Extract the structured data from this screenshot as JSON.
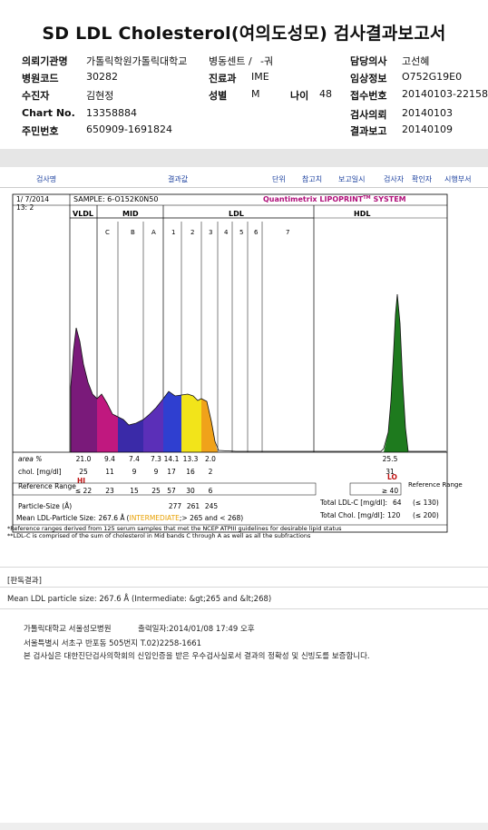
{
  "report": {
    "title": "SD LDL Cholesterol(여의도성모) 검사결과보고서",
    "fields_left": [
      {
        "label": "의뢰기관명",
        "value": "가톨릭학원가톨릭대학교"
      },
      {
        "label": "병원코드",
        "value": "30282"
      },
      {
        "label": "수진자",
        "value": "김현정"
      },
      {
        "label": "Chart No.",
        "value": "13358884"
      },
      {
        "label": "주민번호",
        "value": "650909-1691824"
      }
    ],
    "ward": {
      "label": "병동센트 /",
      "value": "-궈"
    },
    "dept": {
      "label": "진료과",
      "value": "IME"
    },
    "sex": {
      "label": "성별",
      "value": "M"
    },
    "age": {
      "label": "나이",
      "value": "48"
    },
    "fields_right": [
      {
        "label": "담당의사",
        "value": "고선혜"
      },
      {
        "label": "임상정보",
        "value": "O752G19E0"
      },
      {
        "label": "접수번호",
        "value": "20140103-22158"
      },
      {
        "label": "검사의뢰",
        "value": "20140103"
      },
      {
        "label": "결과보고",
        "value": "20140109"
      }
    ]
  },
  "table_header": {
    "test": "검사명",
    "result": "결과값",
    "unit": "단위",
    "ref": "참고치",
    "date": "보고일시",
    "tester": "검사자",
    "checker": "확인자",
    "dept": "시행부서"
  },
  "lipoprint": {
    "date": "1/ 7/2014",
    "run": "13: 2",
    "sample": "SAMPLE:  6-O152K0N50",
    "brand": "Quantimetrix LIPOPRINT",
    "brand_sup": "TM",
    "brand_tail": " SYSTEM",
    "groups": {
      "vldl": "VLDL",
      "mid": "MID",
      "ldl": "LDL",
      "hdl": "HDL"
    },
    "mid_bands": [
      "C",
      "B",
      "A"
    ],
    "ldl_bands": [
      "1",
      "2",
      "3",
      "4",
      "5",
      "6",
      "7"
    ]
  },
  "chart_data": {
    "type": "table",
    "bands": [
      "VLDL",
      "C",
      "B",
      "A",
      "1",
      "2",
      "3",
      "HDL"
    ],
    "area_pct": [
      "21.0",
      "9.4",
      "7.4",
      "7.3",
      "14.1",
      "13.3",
      "2.0",
      "25.5"
    ],
    "chol_mg_dl": [
      "25",
      "11",
      "9",
      "9",
      "17",
      "16",
      "2",
      "31"
    ],
    "reference_range": [
      "≤ 22",
      "23",
      "15",
      "25",
      "57",
      "30",
      "6",
      "≥ 40"
    ],
    "flags": {
      "vldl": "HI",
      "hdl": "LO"
    },
    "particle_size": [
      "277",
      "261",
      "245"
    ]
  },
  "labels": {
    "area": "area %",
    "chol": "chol. [mg/dl]",
    "refrange": "Reference Range",
    "refrange_right": "Reference Range",
    "particle": "Particle-Size (Å)",
    "mean": "Mean LDL-Particle Size:",
    "mean_value": "267.6 Å",
    "mean_class": "INTERMEDIATE",
    "mean_range": ";> 265 and < 268)",
    "total_ldlc": "Total LDL-C [mg/dl]:",
    "total_ldlc_value": "64",
    "total_ldlc_ref": "(≤ 130)",
    "total_chol": "Total Chol. [mg/dl]:",
    "total_chol_value": "120",
    "total_chol_ref": "(≤ 200)",
    "note1": "*Reference ranges derived from 125 serum samples that met the NCEP ATPIII guidelines for desirable lipid status",
    "note2": "**LDL-C is comprised of the sum of cholesterol in Mid bands C through A as well as all the subfractions"
  },
  "interpretation": {
    "heading": "[판독결과]",
    "text": "Mean LDL particle size: 267.6 Å (Intermediate: &gt;265 and &lt;268)"
  },
  "footer": {
    "hospital": "가톨릭대학교 서울성모병원",
    "printed": "출력일자:2014/01/08 17:49 오후",
    "address": "서울특별시 서초구 반포동 505번지 T.02)2258-1661",
    "cert": "본 검사실은 대한진단검사의학회의 신임인증을 받은 우수검사실로서 결과의 정확성 및 신빙도를 보증합니다."
  },
  "colors": {
    "vldl": "#7a1a7a",
    "midC": "#c0187f",
    "midB": "#3a2aa8",
    "midA": "#5b2fb8",
    "b1": "#2f3fd0",
    "b2": "#f2e41a",
    "b3": "#f0a21a",
    "hdl": "#1e7a1e"
  }
}
